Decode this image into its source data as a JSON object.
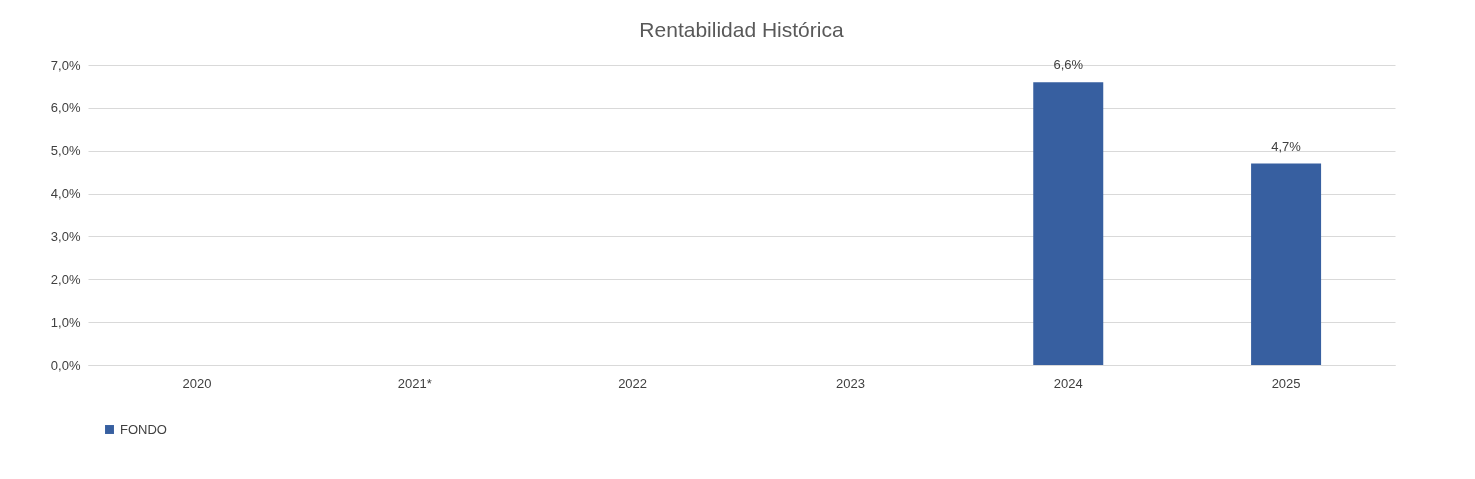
{
  "chart_data": {
    "type": "bar",
    "title": "Rentabilidad Histórica",
    "categories": [
      "2020",
      "2021*",
      "2022",
      "2023",
      "2024",
      "2025"
    ],
    "series": [
      {
        "name": "FONDO",
        "color": "#375fa0",
        "values": [
          null,
          null,
          null,
          null,
          6.6,
          4.7
        ],
        "value_labels": [
          null,
          null,
          null,
          null,
          "6,6%",
          "4,7%"
        ]
      }
    ],
    "ylim": [
      0,
      7
    ],
    "yticks": [
      {
        "value": 0,
        "label": "0,0%"
      },
      {
        "value": 1,
        "label": "1,0%"
      },
      {
        "value": 2,
        "label": "2,0%"
      },
      {
        "value": 3,
        "label": "3,0%"
      },
      {
        "value": 4,
        "label": "4,0%"
      },
      {
        "value": 5,
        "label": "5,0%"
      },
      {
        "value": 6,
        "label": "6,0%"
      },
      {
        "value": 7,
        "label": "7,0%"
      }
    ],
    "grid": "y",
    "legend": "bottom"
  }
}
